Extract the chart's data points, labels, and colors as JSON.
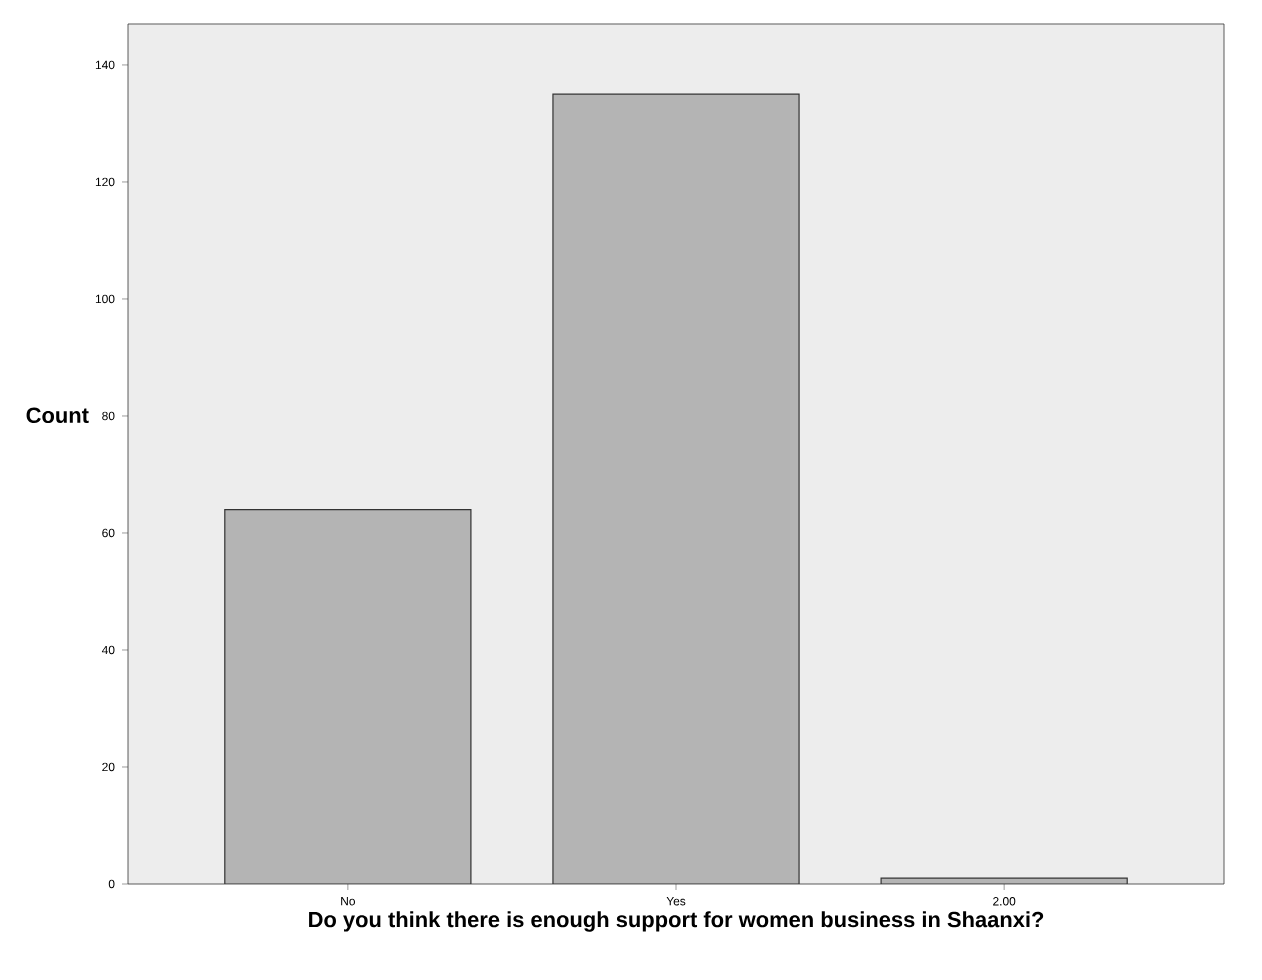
{
  "chart_data": {
    "type": "bar",
    "xlabel": "Do you think there is enough support for women business in Shaanxi?",
    "ylabel": "Count",
    "categories": [
      "No",
      "Yes",
      "2.00"
    ],
    "values": [
      64,
      135,
      1
    ],
    "color": "#b4b4b4",
    "ylim": [
      0,
      147
    ],
    "yticks": [
      0,
      20,
      40,
      60,
      80,
      100,
      120,
      140
    ]
  }
}
